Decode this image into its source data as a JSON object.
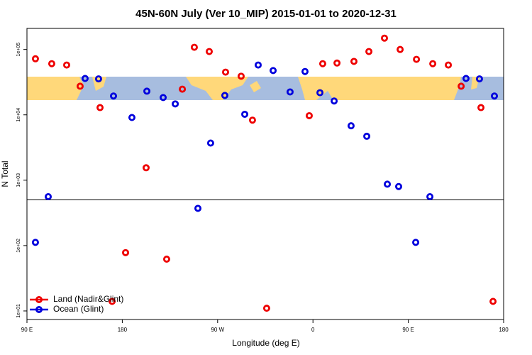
{
  "chart_data": {
    "type": "scatter",
    "title": "45N-60N July (Ver 10_MIP)   2015-01-01 to 2020-12-31",
    "x_label": "Longitude (deg E)",
    "y_label": "N Total",
    "log_y": true,
    "xlim": [
      90,
      540
    ],
    "ylim": [
      7.4,
      210000
    ],
    "xticks": [
      {
        "value": 90,
        "label": "90 E"
      },
      {
        "value": 180,
        "label": "180"
      },
      {
        "value": 270,
        "label": "90 W"
      },
      {
        "value": 360,
        "label": "0"
      },
      {
        "value": 450,
        "label": "90 E"
      },
      {
        "value": 540,
        "label": "180"
      }
    ],
    "yticks": [
      {
        "value": 10,
        "label": "1e+01"
      },
      {
        "value": 100,
        "label": "1e+02"
      },
      {
        "value": 1000,
        "label": "1e+03"
      },
      {
        "value": 10000,
        "label": "1e+04"
      },
      {
        "value": 100000,
        "label": "1e+05"
      }
    ],
    "hline": 500,
    "legend": "bottom-left",
    "series": [
      {
        "name": "Land (Nadir&Glint)",
        "color": "#ee0000",
        "x": [
          98.0,
          113.4,
          127.5,
          140.2,
          159.0,
          170.4,
          183.1,
          202.5,
          221.9,
          236.7,
          248.0,
          262.1,
          277.5,
          292.2,
          302.9,
          316.3,
          356.5,
          369.2,
          382.7,
          398.7,
          412.8,
          427.5,
          442.3,
          457.7,
          473.1,
          487.8,
          499.9,
          518.6,
          530.0
        ],
        "values": [
          72000,
          60600,
          57800,
          27400,
          12900,
          14,
          78,
          1550,
          62,
          24700,
          108000,
          93000,
          45000,
          39000,
          8300,
          11,
          9700,
          60600,
          62000,
          65700,
          93000,
          149000,
          100000,
          70600,
          60600,
          57800,
          27400,
          12900,
          14
        ]
      },
      {
        "name": "Ocean (Glint)",
        "color": "#0000dd",
        "x": [
          98.0,
          110.1,
          144.9,
          157.6,
          171.7,
          189.1,
          203.2,
          218.6,
          230.0,
          251.4,
          263.4,
          276.8,
          295.6,
          308.3,
          322.4,
          338.4,
          352.5,
          366.6,
          380.0,
          396.0,
          410.8,
          430.2,
          440.9,
          457.0,
          470.4,
          504.5,
          517.2,
          531.3
        ],
        "values": [
          112,
          560,
          36000,
          35500,
          19400,
          9100,
          23000,
          18400,
          14700,
          371,
          3700,
          19800,
          10200,
          57800,
          47600,
          22400,
          46000,
          21800,
          16300,
          6800,
          4700,
          870,
          800,
          112,
          560,
          36000,
          35500,
          19400
        ]
      }
    ]
  }
}
